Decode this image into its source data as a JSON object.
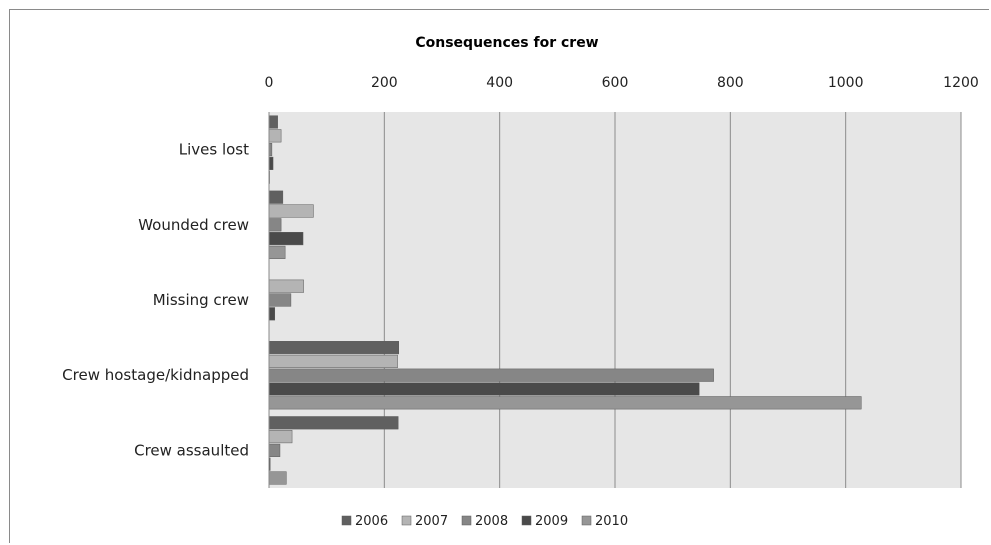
{
  "chart_data": {
    "type": "bar",
    "orientation": "horizontal",
    "title": "Consequences for crew",
    "categories": [
      "Lives lost",
      "Wounded crew",
      "Missing crew",
      "Crew hostage/kidnapped",
      "Crew assaulted"
    ],
    "series": [
      {
        "name": "2006",
        "color": "#606060",
        "values": [
          15,
          24,
          0,
          225,
          224
        ]
      },
      {
        "name": "2007",
        "color": "#b4b4b4",
        "values": [
          21,
          77,
          60,
          223,
          40
        ]
      },
      {
        "name": "2008",
        "color": "#868686",
        "values": [
          5,
          21,
          38,
          771,
          19
        ]
      },
      {
        "name": "2009",
        "color": "#4a4a4a",
        "values": [
          7,
          59,
          10,
          746,
          2
        ]
      },
      {
        "name": "2010",
        "color": "#969696",
        "values": [
          1,
          28,
          0,
          1027,
          30
        ]
      }
    ],
    "x_ticks": [
      "0",
      "200",
      "400",
      "600",
      "800",
      "1000",
      "1200"
    ],
    "xlim": [
      0,
      1200
    ],
    "grid": true,
    "legend": "bottom",
    "axis_position": "top"
  }
}
